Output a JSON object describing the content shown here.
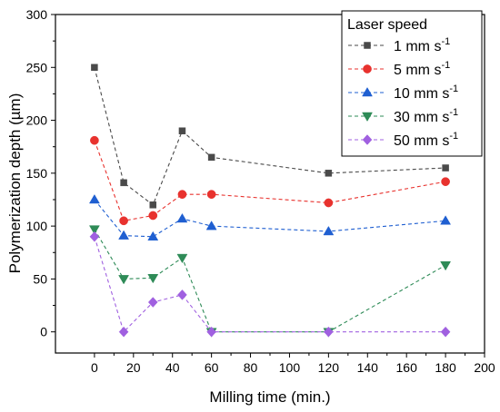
{
  "chart_data": {
    "type": "line",
    "xlabel": "Milling time (min.)",
    "ylabel": "Polymerization depth (µm)",
    "xlim": [
      -20,
      200
    ],
    "ylim": [
      -20,
      300
    ],
    "x_ticks": [
      0,
      20,
      40,
      60,
      80,
      100,
      120,
      140,
      160,
      180,
      200
    ],
    "y_ticks": [
      0,
      50,
      100,
      150,
      200,
      250,
      300
    ],
    "grid": false,
    "legend": {
      "title": "Laser speed",
      "placement": "top-right"
    },
    "x": [
      0,
      15,
      30,
      45,
      60,
      120,
      180
    ],
    "series": [
      {
        "name": "1 mm s",
        "unit_sup": "-1",
        "color": "#4a4a4a",
        "marker": "square",
        "values": [
          250,
          141,
          120,
          190,
          165,
          150,
          155
        ]
      },
      {
        "name": "5 mm s",
        "unit_sup": "-1",
        "color": "#e8322e",
        "marker": "circle",
        "values": [
          181,
          105,
          110,
          130,
          130,
          122,
          142
        ]
      },
      {
        "name": "10 mm s",
        "unit_sup": "-1",
        "color": "#1f5fd1",
        "marker": "triangle-up",
        "values": [
          125,
          91,
          90,
          107,
          100,
          95,
          105
        ]
      },
      {
        "name": "30 mm s",
        "unit_sup": "-1",
        "color": "#2e8b57",
        "marker": "triangle-down",
        "values": [
          97,
          50,
          51,
          70,
          0,
          0,
          63
        ]
      },
      {
        "name": "50 mm s",
        "unit_sup": "-1",
        "color": "#a060e0",
        "marker": "diamond",
        "values": [
          90,
          0,
          28,
          35,
          0,
          0,
          0
        ]
      }
    ]
  }
}
